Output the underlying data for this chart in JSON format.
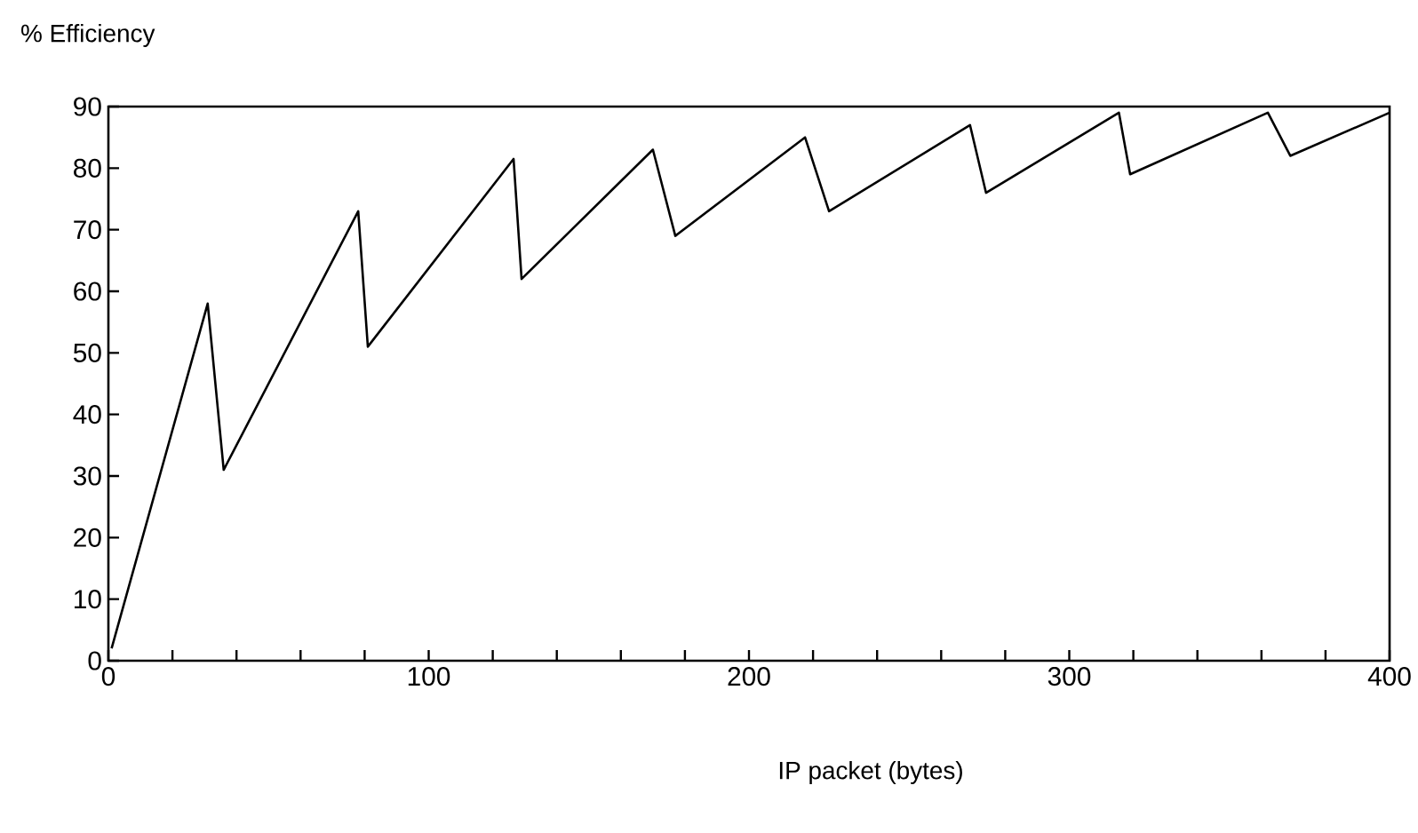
{
  "chart_data": {
    "type": "line",
    "xlabel": "IP packet (bytes)",
    "ylabel": "% Efficiency",
    "series": [
      {
        "color": "#000000",
        "x": [
          1,
          31,
          36,
          78,
          81,
          126.5,
          129,
          170,
          177,
          217.5,
          225,
          269,
          274,
          315.5,
          319,
          362,
          369,
          400
        ],
        "values": [
          2,
          58,
          31,
          73,
          51,
          81.5,
          62,
          83,
          69,
          85,
          73,
          87,
          76,
          89,
          79,
          89,
          82,
          89
        ]
      }
    ],
    "xlim": [
      0,
      400
    ],
    "ylim": [
      0,
      90
    ],
    "xticks": [
      0,
      {
        "value": 20,
        "label": null
      },
      {
        "value": 40,
        "label": null
      },
      {
        "value": 60,
        "label": null
      },
      {
        "value": 80,
        "label": null
      },
      100,
      {
        "value": 120,
        "label": null
      },
      {
        "value": 140,
        "label": null
      },
      {
        "value": 160,
        "label": null
      },
      {
        "value": 180,
        "label": null
      },
      200,
      {
        "value": 220,
        "label": null
      },
      {
        "value": 240,
        "label": null
      },
      {
        "value": 260,
        "label": null
      },
      {
        "value": 280,
        "label": null
      },
      300,
      {
        "value": 320,
        "label": null
      },
      {
        "value": 340,
        "label": null
      },
      {
        "value": 360,
        "label": null
      },
      {
        "value": 380,
        "label": null
      },
      400
    ],
    "yticks": [
      0,
      10,
      20,
      30,
      40,
      50,
      60,
      70,
      80,
      90
    ],
    "grid": false,
    "marker": "none",
    "line_style": "solid"
  }
}
